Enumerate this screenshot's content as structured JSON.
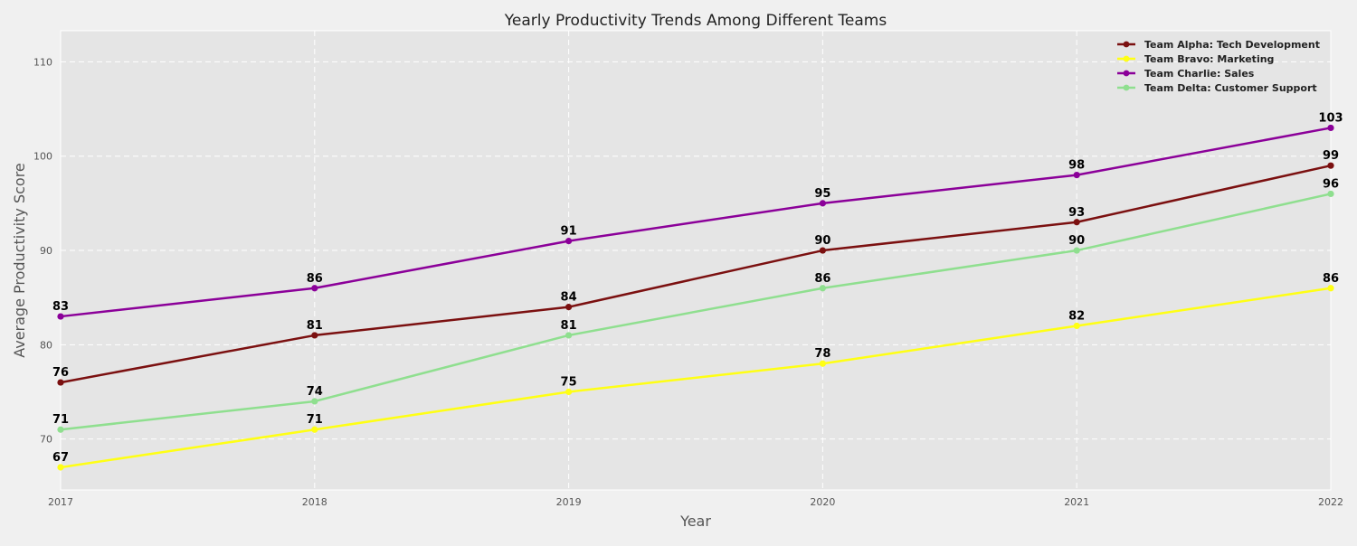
{
  "chart_data": {
    "type": "line",
    "title": "Yearly Productivity Trends Among Different Teams",
    "xlabel": "Year",
    "ylabel": "Average Productivity Score",
    "x": [
      2017,
      2018,
      2019,
      2020,
      2021,
      2022
    ],
    "x_tick_labels": [
      "2017",
      "2018",
      "2019",
      "2020",
      "2021",
      "2022"
    ],
    "xlim": [
      2017,
      2022
    ],
    "ylim": [
      64.6,
      113.3
    ],
    "y_ticks": [
      70,
      80,
      90,
      100,
      110
    ],
    "y_tick_labels": [
      "70",
      "80",
      "90",
      "100",
      "110"
    ],
    "grid": true,
    "grid_style": "dashed white",
    "plot_background": "#e5e5e5",
    "legend_position": "top-right",
    "series": [
      {
        "name": "Team Alpha: Tech Development",
        "color": "#7b1010",
        "values": [
          76,
          81,
          84,
          90,
          93,
          99
        ],
        "labels": [
          "76",
          "81",
          "84",
          "90",
          "93",
          "99"
        ]
      },
      {
        "name": "Team Bravo: Marketing",
        "color": "#ffff14",
        "values": [
          67,
          71,
          75,
          78,
          82,
          86
        ],
        "labels": [
          "67",
          "71",
          "75",
          "78",
          "82",
          "86"
        ]
      },
      {
        "name": "Team Charlie: Sales",
        "color": "#8b0099",
        "values": [
          83,
          86,
          91,
          95,
          98,
          103
        ],
        "labels": [
          "83",
          "86",
          "91",
          "95",
          "98",
          "103"
        ]
      },
      {
        "name": "Team Delta: Customer Support",
        "color": "#8fdf8f",
        "values": [
          71,
          74,
          81,
          86,
          90,
          96
        ],
        "labels": [
          "71",
          "74",
          "81",
          "86",
          "90",
          "96"
        ]
      }
    ]
  }
}
